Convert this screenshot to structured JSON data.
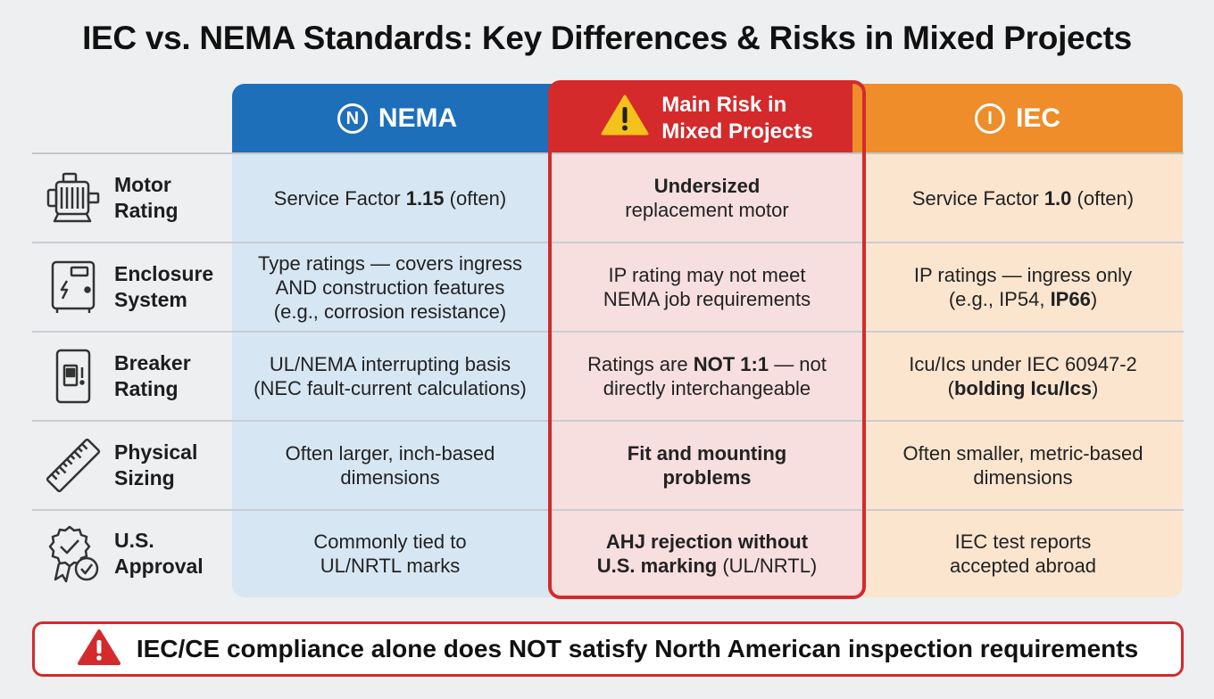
{
  "title": "IEC vs. NEMA Standards: Key Differences & Risks in Mixed Projects",
  "headers": {
    "nema": {
      "icon_letter": "N",
      "label": "NEMA"
    },
    "risk": {
      "line1": "Main Risk in",
      "line2": "Mixed Projects"
    },
    "iec": {
      "icon_letter": "I",
      "label": "IEC"
    }
  },
  "rows": [
    {
      "label1": "Motor",
      "label2": "Rating",
      "icon": "motor-icon",
      "nema": {
        "a": "Service Factor ",
        "b": "1.15",
        "c": " (often)"
      },
      "risk": {
        "l1": "Undersized",
        "l2": "replacement motor"
      },
      "iec": {
        "a": "Service Factor ",
        "b": "1.0",
        "c": " (often)"
      }
    },
    {
      "label1": "Enclosure",
      "label2": "System",
      "icon": "enclosure-icon",
      "nema": {
        "l1": "Type ratings — covers ingress",
        "l2": "AND construction features",
        "l3": "(e.g., corrosion resistance)"
      },
      "risk": {
        "l1": "IP rating may not meet",
        "l2": "NEMA job requirements"
      },
      "iec": {
        "l1": "IP ratings — ingress only",
        "l2a": "(e.g., IP54, ",
        "l2b": "IP66",
        "l2c": ")"
      }
    },
    {
      "label1": "Breaker",
      "label2": "Rating",
      "icon": "breaker-icon",
      "nema": {
        "l1": "UL/NEMA interrupting basis",
        "l2": "(NEC fault-current calculations)"
      },
      "risk": {
        "l1a": "Ratings are ",
        "l1b": "NOT 1:1",
        "l1c": " — not",
        "l2": "directly interchangeable"
      },
      "iec": {
        "l1": "Icu/Ics under IEC 60947-2",
        "l2a": "(",
        "l2b": "bolding Icu/Ics",
        "l2c": ")"
      }
    },
    {
      "label1": "Physical",
      "label2": "Sizing",
      "icon": "ruler-icon",
      "nema": {
        "l1": "Often larger, inch-based",
        "l2": "dimensions"
      },
      "risk": {
        "l1": "Fit and mounting",
        "l2": "problems"
      },
      "iec": {
        "l1": "Often smaller, metric-based",
        "l2": "dimensions"
      }
    },
    {
      "label1": "U.S.",
      "label2": "Approval",
      "icon": "approval-badge-icon",
      "nema": {
        "l1": "Commonly tied to",
        "l2": "UL/NRTL marks"
      },
      "risk": {
        "l1": "AHJ rejection without",
        "l2a": "U.S. marking",
        "l2b": " (UL/NRTL)"
      },
      "iec": {
        "l1": "IEC test reports",
        "l2": "accepted abroad"
      }
    }
  ],
  "banner": "IEC/CE compliance alone does NOT satisfy North American inspection requirements",
  "colors": {
    "nema_header": "#1e6fba",
    "risk_header": "#d42a2b",
    "iec_header": "#ee8d2a",
    "nema_bg": "#d7e6f3",
    "risk_bg": "#f7dedf",
    "iec_bg": "#fbe5cf",
    "warning_yellow": "#f5c21b"
  }
}
